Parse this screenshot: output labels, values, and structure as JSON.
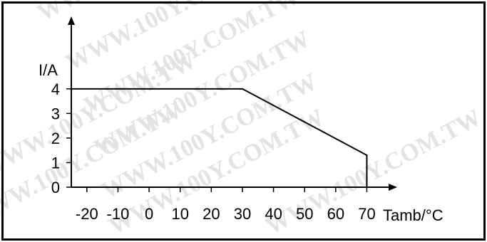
{
  "chart_data": {
    "type": "line",
    "title": "",
    "xlabel": "Tamb/°C",
    "ylabel": "I/A",
    "x_ticks": [
      -20,
      -10,
      0,
      10,
      20,
      30,
      40,
      50,
      60,
      70
    ],
    "x_tick_labels": [
      "-20",
      "-10",
      "0",
      "10",
      "20",
      "30",
      "40",
      "50",
      "60",
      "70"
    ],
    "y_ticks": [
      0,
      1,
      2,
      3,
      4
    ],
    "y_tick_labels": [
      "0",
      "1",
      "2",
      "3",
      "4"
    ],
    "xlim": [
      -25,
      77
    ],
    "ylim": [
      0,
      6.6
    ],
    "grid": false,
    "legend": "none",
    "series": [
      {
        "x": [
          -25,
          30,
          70,
          70
        ],
        "y": [
          4,
          4,
          1.3,
          0
        ]
      }
    ]
  },
  "watermark_text": "WWW.100Y.COM.TW",
  "colors": {
    "line": "#000000",
    "axis": "#000000",
    "frame": "#000000",
    "watermark": "#e3e3e3"
  }
}
